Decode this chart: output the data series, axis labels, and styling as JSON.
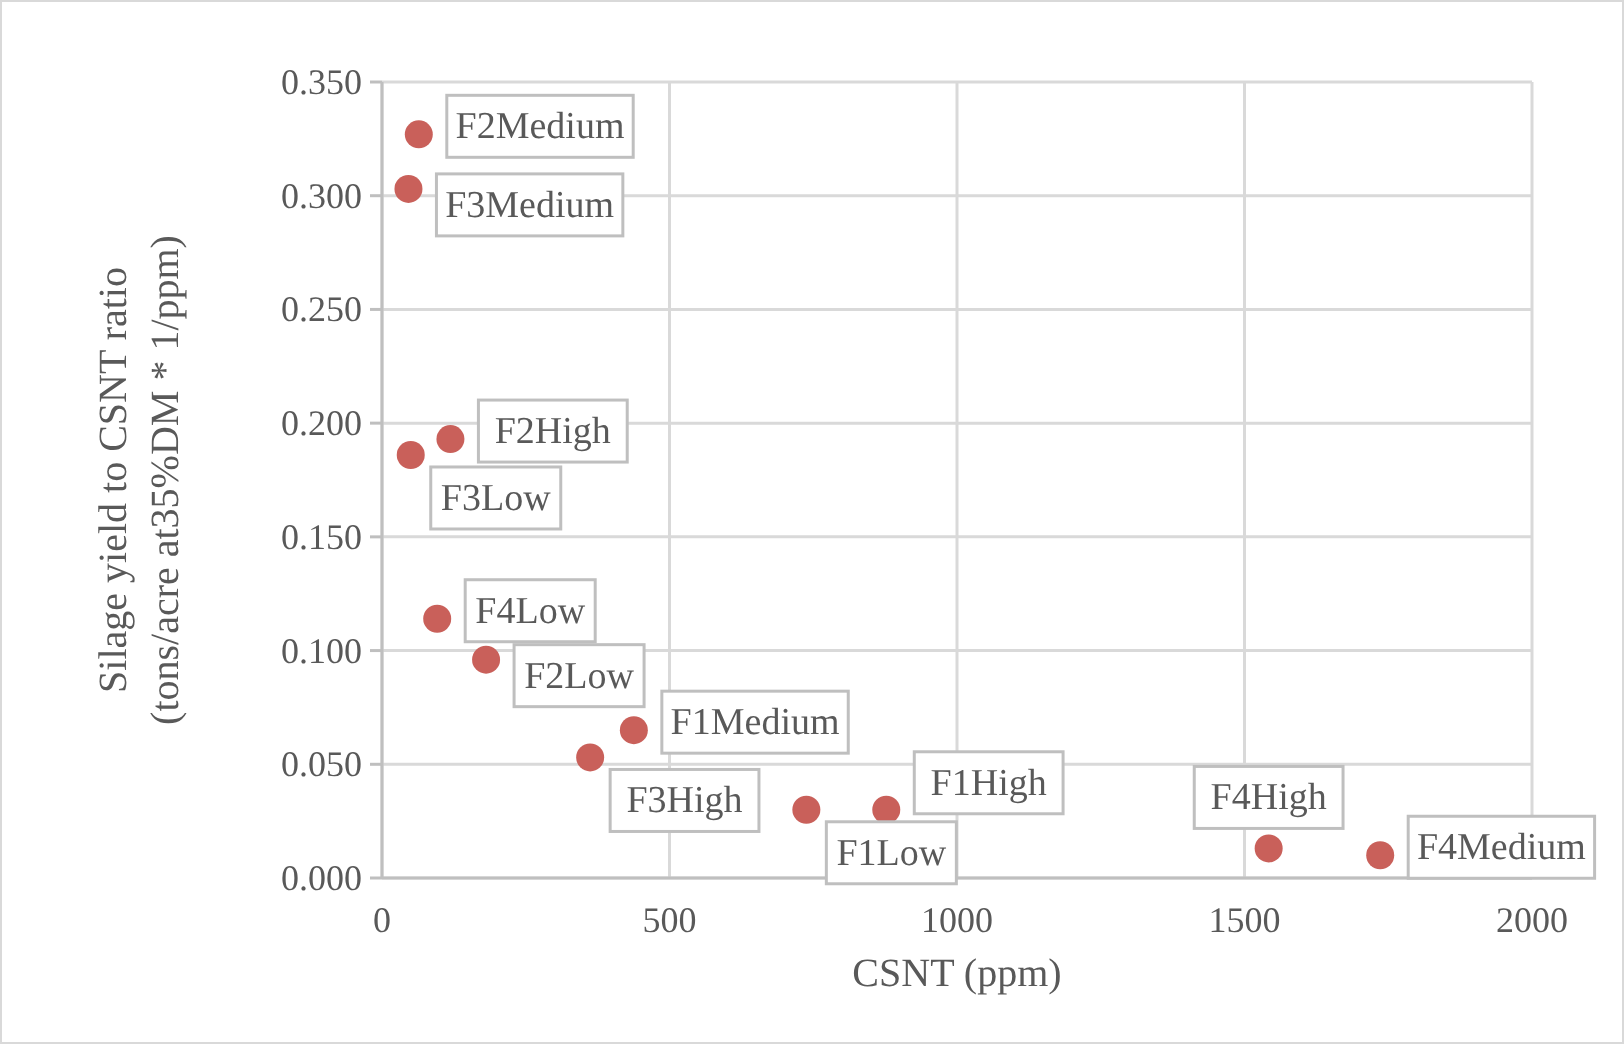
{
  "chart_data": {
    "type": "scatter",
    "xlabel": "CSNT (ppm)",
    "ylabel": "Silage yield to CSNT ratio\n(tons/acre at35%DM * 1/ppm)",
    "x": [
      64,
      46,
      119,
      50,
      96,
      181,
      438,
      362,
      738,
      877,
      1542,
      1736
    ],
    "series": [
      {
        "color": "#c9605a",
        "values": [
          0.327,
          0.303,
          0.193,
          0.186,
          0.114,
          0.096,
          0.065,
          0.053,
          0.03,
          0.03,
          0.013,
          0.01
        ]
      }
    ],
    "xlim": [
      0,
      2000
    ],
    "xticks": [
      0,
      500,
      1000,
      1500,
      2000
    ],
    "ylim": [
      0,
      0.35
    ],
    "yticks": [
      {
        "value": 0,
        "label": "0.000"
      },
      {
        "value": 0.05,
        "label": "0.050"
      },
      {
        "value": 0.1,
        "label": "0.100"
      },
      {
        "value": 0.15,
        "label": "0.150"
      },
      {
        "value": 0.2,
        "label": "0.200"
      },
      {
        "value": 0.25,
        "label": "0.250"
      },
      {
        "value": 0.3,
        "label": "0.300"
      },
      {
        "value": 0.35,
        "label": "0.350"
      }
    ],
    "grid": true,
    "marker": "circle",
    "annotations": [
      {
        "text": "F2Medium",
        "x": 64,
        "y": 0.327
      },
      {
        "text": "F3Medium",
        "x": 46,
        "y": 0.303
      },
      {
        "text": "F2High",
        "x": 119,
        "y": 0.193
      },
      {
        "text": "F3Low",
        "x": 50,
        "y": 0.186
      },
      {
        "text": "F4Low",
        "x": 96,
        "y": 0.114
      },
      {
        "text": "F2Low",
        "x": 181,
        "y": 0.096
      },
      {
        "text": "F1Medium",
        "x": 438,
        "y": 0.065
      },
      {
        "text": "F3High",
        "x": 362,
        "y": 0.053
      },
      {
        "text": "F1Low",
        "x": 738,
        "y": 0.03
      },
      {
        "text": "F1High",
        "x": 877,
        "y": 0.03
      },
      {
        "text": "F4High",
        "x": 1542,
        "y": 0.013
      },
      {
        "text": "F4Medium",
        "x": 1736,
        "y": 0.01
      }
    ]
  }
}
